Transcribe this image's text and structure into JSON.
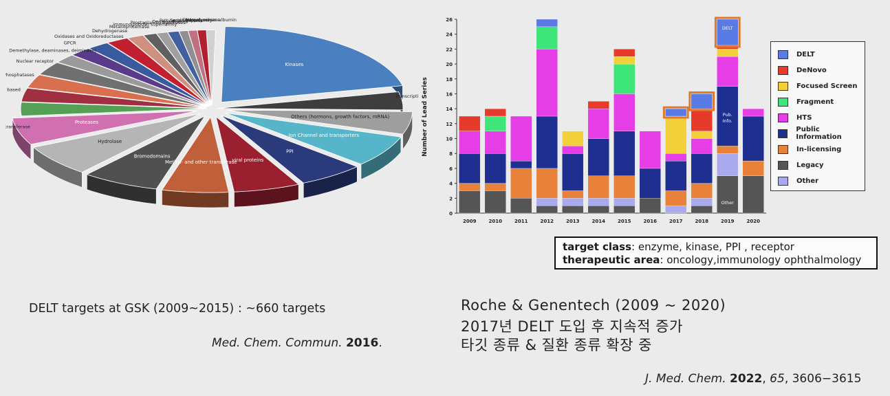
{
  "pie": {
    "slices": [
      {
        "label": "Kinases",
        "value": 22,
        "color": "#4a7fc0"
      },
      {
        "label": "Transcription factor",
        "value": 4,
        "color": "#3e3e3e"
      },
      {
        "label": "Others (hormons, growth factors, mRNA)",
        "value": 5,
        "color": "#9e9e9e"
      },
      {
        "label": "Ion Channel and transporters",
        "value": 7,
        "color": "#56b5c8"
      },
      {
        "label": "PPI",
        "value": 6,
        "color": "#2a3a7a"
      },
      {
        "label": "viral proteins",
        "value": 6,
        "color": "#9a2030"
      },
      {
        "label": "Methyl- and other transferase",
        "value": 6,
        "color": "#c0603a"
      },
      {
        "label": "Bromodomains",
        "value": 7,
        "color": "#505050"
      },
      {
        "label": "Hydrolase",
        "value": 7,
        "color": "#b5b5b5"
      },
      {
        "label": "Proteases",
        "value": 6,
        "color": "#d070b0"
      },
      {
        "label": "Aminoacyltransferase",
        "value": 3,
        "color": "#55a055"
      },
      {
        "label": "Cell based",
        "value": 3,
        "color": "#a03040"
      },
      {
        "label": "Phosphatases",
        "value": 3,
        "color": "#d87050"
      },
      {
        "label": "Nuclear receptor",
        "value": 3,
        "color": "#707070"
      },
      {
        "label": "Demethylase, deaminases, deiminases",
        "value": 2,
        "color": "#9a9a9a"
      },
      {
        "label": "GPCR",
        "value": 2,
        "color": "#5a3a8a"
      },
      {
        "label": "Oxidases and Oxidoreductases",
        "value": 2,
        "color": "#3a5aa0"
      },
      {
        "label": "Dehydrogenase",
        "value": 2,
        "color": "#c02030"
      },
      {
        "label": "Metalloproteinase",
        "value": 1.5,
        "color": "#d09080"
      },
      {
        "label": "immunoglobulin superfamily",
        "value": 1.2,
        "color": "#606060"
      },
      {
        "label": "Prostaglandin Synthases",
        "value": 1,
        "color": "#a0a0a0"
      },
      {
        "label": "Deubiquitinases",
        "value": 1,
        "color": "#4060a0"
      },
      {
        "label": "Fatty acid synthase",
        "value": 0.8,
        "color": "#909090"
      },
      {
        "label": "Serpin superfamily",
        "value": 0.8,
        "color": "#c07080"
      },
      {
        "label": "DNA polymerase",
        "value": 0.8,
        "color": "#b02030"
      },
      {
        "label": "Human serum albumin",
        "value": 0.8,
        "color": "#d0d0d0"
      }
    ]
  },
  "chart_data": {
    "type": "bar",
    "stacked": true,
    "ylabel": "Number of Lead Series",
    "ylim": [
      0,
      26
    ],
    "yticks": [
      0,
      2,
      4,
      6,
      8,
      10,
      12,
      14,
      16,
      18,
      20,
      22,
      24,
      26
    ],
    "categories": [
      "2009",
      "2010",
      "2011",
      "2012",
      "2013",
      "2014",
      "2015",
      "2016",
      "2017",
      "2018",
      "2019",
      "2020"
    ],
    "series": [
      {
        "name": "Legacy",
        "color": "#555555",
        "values": [
          3,
          3,
          2,
          1,
          1,
          1,
          1,
          2,
          0,
          1,
          5,
          5
        ]
      },
      {
        "name": "Other",
        "color": "#a9a9ee",
        "values": [
          0,
          0,
          0,
          1,
          1,
          1,
          1,
          0,
          1,
          1,
          3,
          0
        ]
      },
      {
        "name": "In-licensing",
        "color": "#e8823a",
        "values": [
          1,
          1,
          4,
          4,
          1,
          3,
          3,
          0,
          2,
          2,
          1,
          2
        ]
      },
      {
        "name": "Public Information",
        "color": "#1f2f8f",
        "values": [
          4,
          4,
          1,
          7,
          5,
          5,
          6,
          4,
          4,
          4,
          8,
          6
        ]
      },
      {
        "name": "HTS",
        "color": "#e63ee6",
        "values": [
          3,
          3,
          6,
          9,
          1,
          4,
          5,
          5,
          1,
          2,
          4,
          1
        ]
      },
      {
        "name": "Fragment",
        "color": "#3ee67a",
        "values": [
          0,
          2,
          0,
          3,
          0,
          0,
          4,
          0,
          0,
          0,
          0,
          0
        ]
      },
      {
        "name": "Focused Screen",
        "color": "#f2d03a",
        "values": [
          0,
          0,
          0,
          0,
          2,
          0,
          1,
          0,
          5,
          1,
          1,
          0
        ]
      },
      {
        "name": "DeNovo",
        "color": "#e63a2a",
        "values": [
          2,
          1,
          0,
          0,
          0,
          1,
          1,
          0,
          0,
          3,
          0.5,
          0
        ]
      },
      {
        "name": "DELT",
        "color": "#5a7ae6",
        "values": [
          0,
          0,
          0,
          1,
          0,
          0,
          0,
          0,
          1,
          2,
          3.5,
          0
        ]
      }
    ],
    "annotations": [
      {
        "text": "DELT",
        "category": "2019"
      },
      {
        "text": "Pub. Info.",
        "category": "2019"
      },
      {
        "text": "Other",
        "category": "2019"
      }
    ],
    "highlighted": [
      "2017",
      "2018",
      "2019"
    ]
  },
  "legend": {
    "entries": [
      "DELT",
      "DeNovo",
      "Focused Screen",
      "Fragment",
      "HTS",
      "Public Information",
      "In-licensing",
      "Legacy",
      "Other"
    ],
    "colors": [
      "#5a7ae6",
      "#e63a2a",
      "#f2d03a",
      "#3ee67a",
      "#e63ee6",
      "#1f2f8f",
      "#e8823a",
      "#555555",
      "#a9a9ee"
    ]
  },
  "info": {
    "line1_label": "target class",
    "line1_text": ": enzyme, kinase, PPI , receptor",
    "line2_label": "therapeutic area",
    "line2_text": ": oncology,immunology ophthalmology"
  },
  "left_caption": "DELT targets at GSK (2009~2015) : ~660 targets",
  "left_cite": {
    "journal": "Med. Chem. Commun.",
    "year": "2016",
    "tail": "."
  },
  "right_caption": {
    "line1": "Roche & Genentech (2009 ~ 2020)",
    "line2": "2017년 DELT 도입 후 지속적 증가",
    "line3": "타깃 종류 & 질환 종류 확장 중"
  },
  "right_cite": {
    "journal": "J. Med. Chem.",
    "year": "2022",
    "volume": "65",
    "pages": ", 3606−3615"
  }
}
